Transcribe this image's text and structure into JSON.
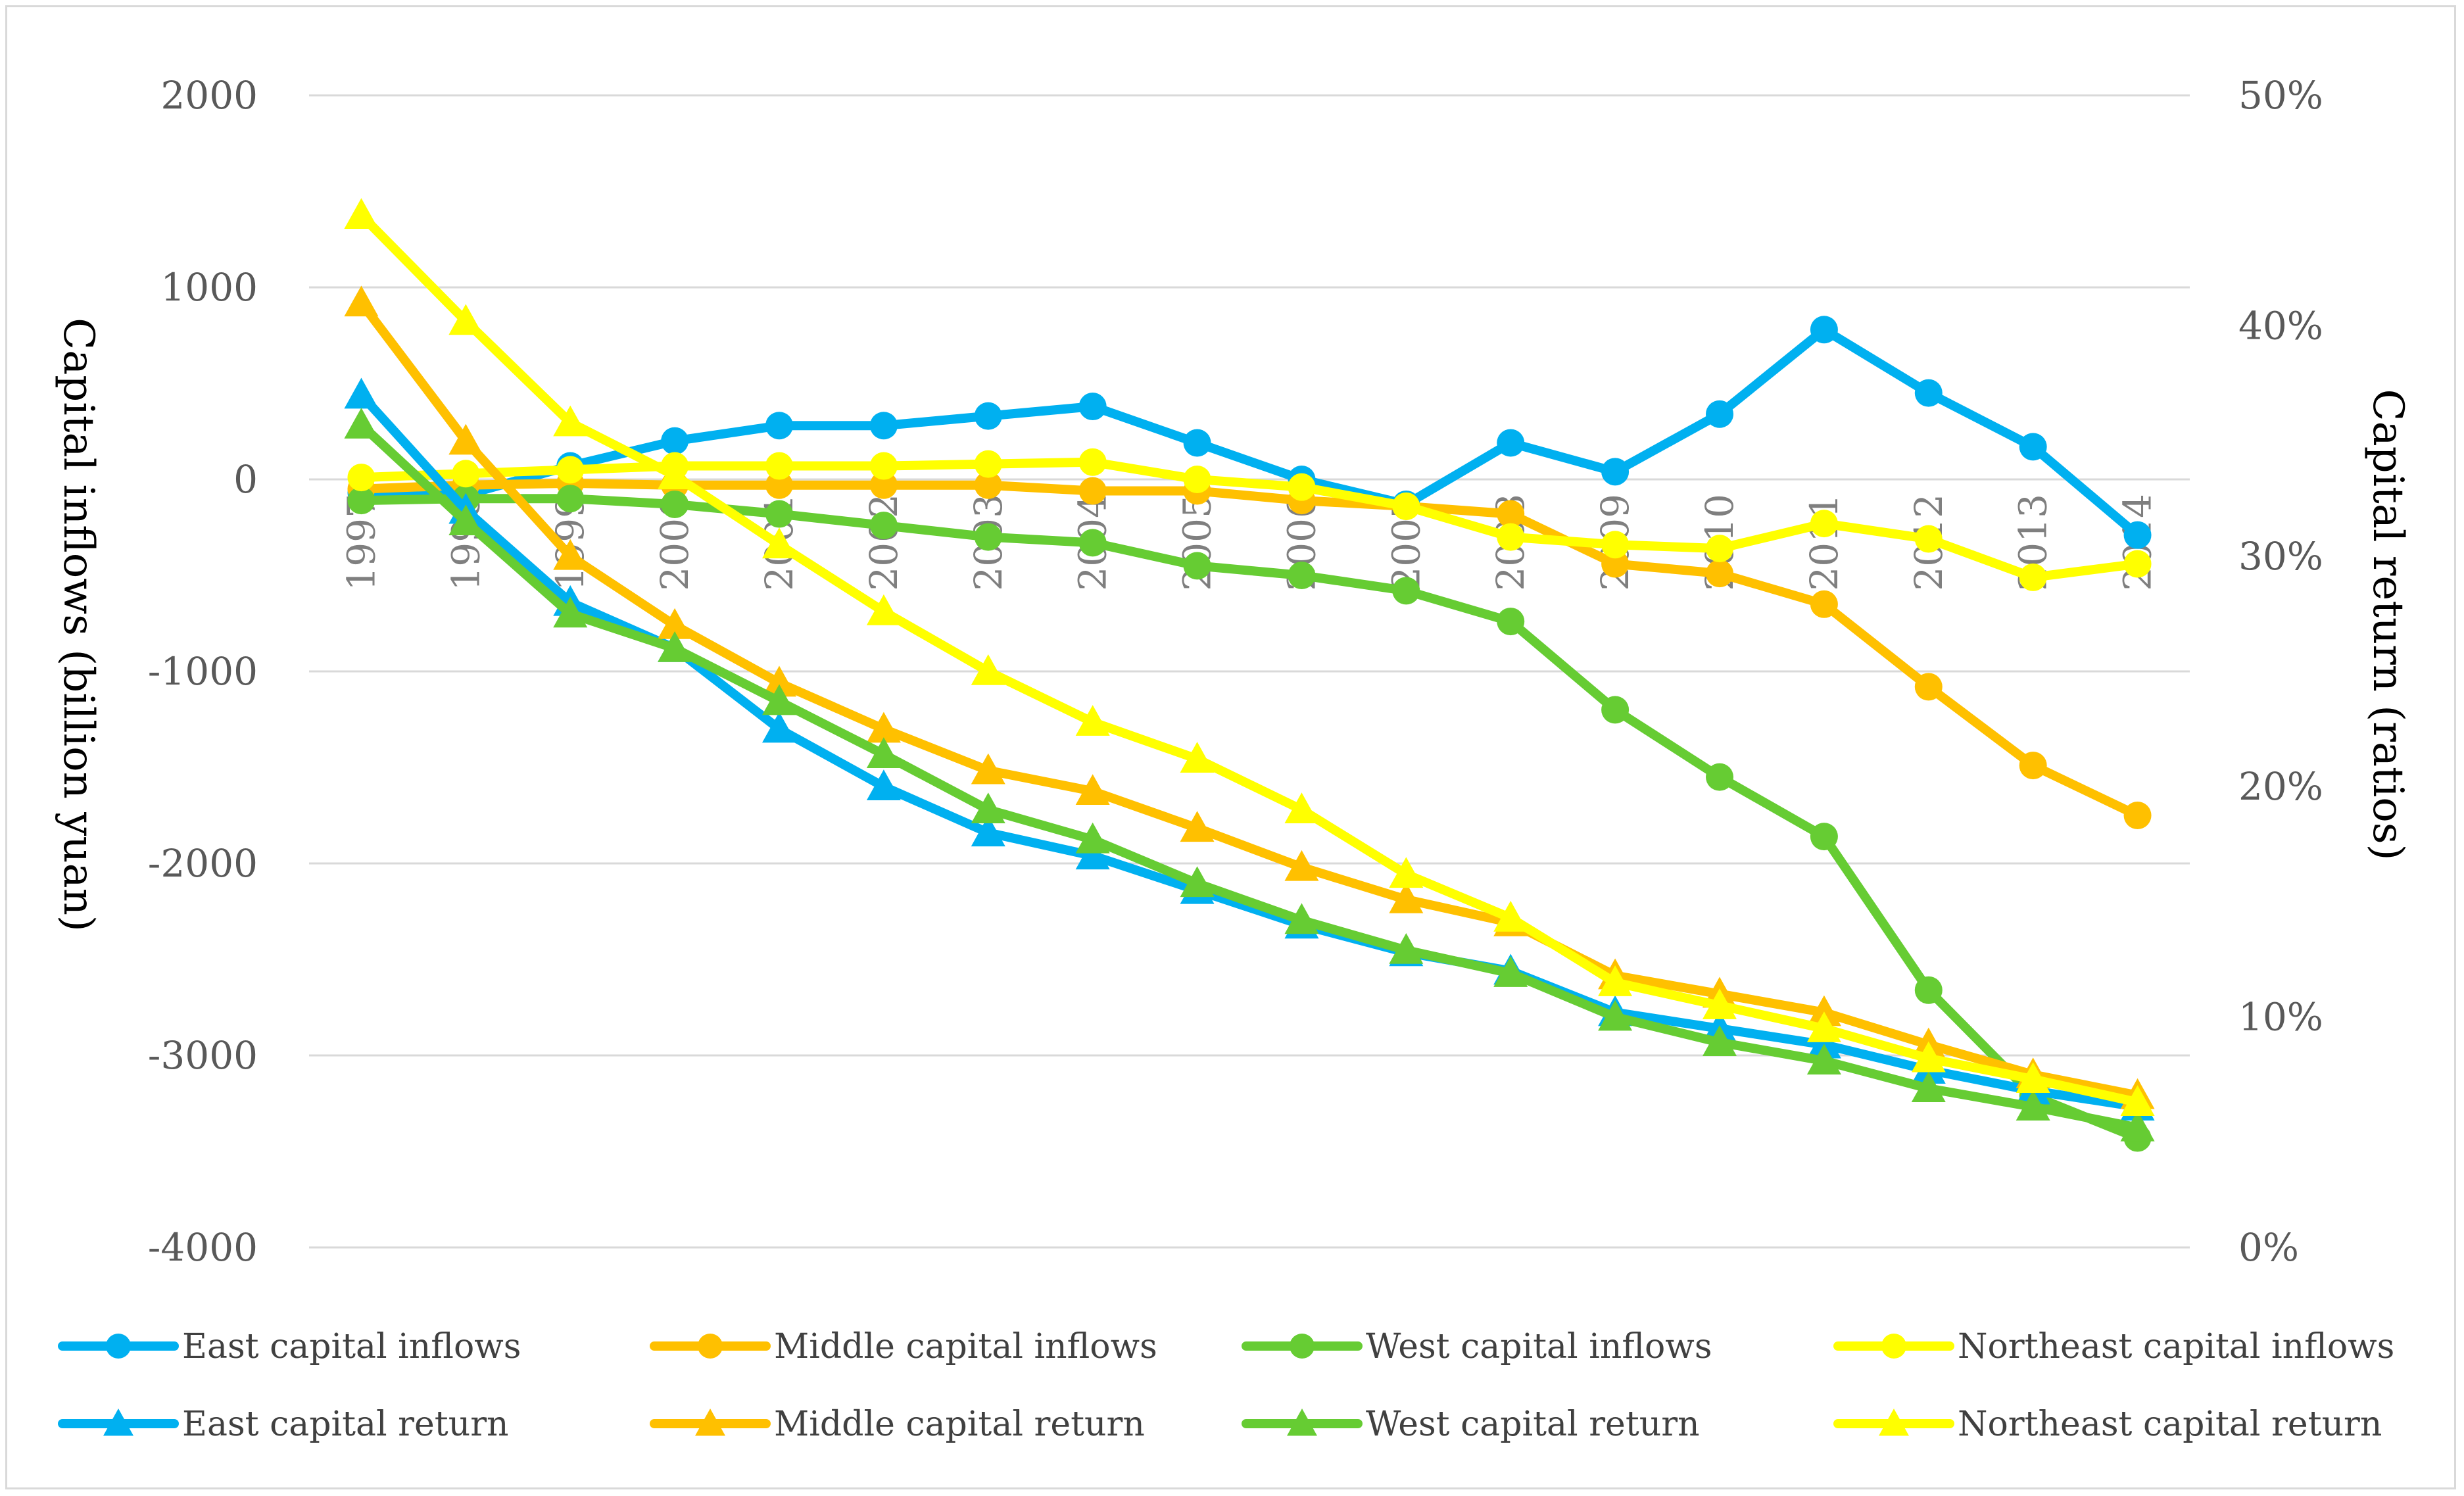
{
  "chart_data": {
    "type": "line",
    "title": "",
    "x": [
      "1997",
      "1998",
      "1999",
      "2000",
      "2001",
      "2002",
      "2003",
      "2004",
      "2005",
      "2006",
      "2007",
      "2008",
      "2009",
      "2010",
      "2011",
      "2012",
      "2013",
      "2014"
    ],
    "left_axis": {
      "label": "Capital inflows (billion yuan)",
      "ylim": [
        -4000,
        2000
      ],
      "ticks": [
        -4000,
        -3000,
        -2000,
        -1000,
        0,
        1000,
        2000
      ],
      "tick_labels": [
        "-4000",
        "-3000",
        "-2000",
        "-1000",
        "0",
        "1000",
        "2000"
      ]
    },
    "right_axis": {
      "label": "Capital return (ratios)",
      "ylim": [
        0,
        0.5
      ],
      "ticks": [
        0,
        0.1,
        0.2,
        0.3,
        0.4,
        0.5
      ],
      "tick_labels": [
        "0%",
        "10%",
        "20%",
        "30%",
        "40%",
        "50%"
      ]
    },
    "grid": true,
    "legend_position": "bottom",
    "series": [
      {
        "name": "East capital inflows",
        "axis": "left",
        "marker": "circle",
        "color": "#00B0F0",
        "values": [
          -70,
          -80,
          70,
          200,
          280,
          280,
          330,
          380,
          190,
          0,
          -130,
          190,
          40,
          340,
          780,
          450,
          170,
          -290
        ]
      },
      {
        "name": "Middle capital inflows",
        "axis": "left",
        "marker": "circle",
        "color": "#FFC000",
        "values": [
          -50,
          -30,
          -20,
          -30,
          -30,
          -30,
          -30,
          -60,
          -60,
          -110,
          -140,
          -180,
          -440,
          -490,
          -650,
          -1080,
          -1490,
          -1750
        ]
      },
      {
        "name": "West capital inflows",
        "axis": "left",
        "marker": "circle",
        "color": "#66CC33",
        "values": [
          -110,
          -100,
          -100,
          -130,
          -180,
          -240,
          -300,
          -330,
          -450,
          -500,
          -580,
          -740,
          -1200,
          -1550,
          -1860,
          -2660,
          -3210,
          -3430
        ]
      },
      {
        "name": "Northeast capital inflows",
        "axis": "left",
        "marker": "circle",
        "color": "#FFFF00",
        "values": [
          10,
          30,
          50,
          70,
          70,
          70,
          80,
          90,
          0,
          -40,
          -140,
          -300,
          -340,
          -360,
          -230,
          -310,
          -510,
          -440
        ]
      },
      {
        "name": "East capital return",
        "axis": "right",
        "marker": "triangle",
        "color": "#00B0F0",
        "values": [
          0.37,
          0.32,
          0.28,
          0.26,
          0.225,
          0.2,
          0.18,
          0.17,
          0.155,
          0.14,
          0.128,
          0.12,
          0.102,
          0.095,
          0.088,
          0.077,
          0.068,
          0.061
        ]
      },
      {
        "name": "Middle capital return",
        "axis": "right",
        "marker": "triangle",
        "color": "#FFC000",
        "values": [
          0.41,
          0.35,
          0.3,
          0.27,
          0.245,
          0.225,
          0.207,
          0.198,
          0.182,
          0.165,
          0.151,
          0.141,
          0.118,
          0.11,
          0.102,
          0.088,
          0.075,
          0.066
        ]
      },
      {
        "name": "West capital return",
        "axis": "right",
        "marker": "triangle",
        "color": "#66CC33",
        "values": [
          0.357,
          0.315,
          0.275,
          0.26,
          0.237,
          0.214,
          0.19,
          0.177,
          0.158,
          0.142,
          0.129,
          0.119,
          0.1,
          0.089,
          0.081,
          0.069,
          0.061,
          0.052
        ]
      },
      {
        "name": "Northeast capital return",
        "axis": "right",
        "marker": "triangle",
        "color": "#FFFF00",
        "values": [
          0.448,
          0.402,
          0.358,
          0.335,
          0.305,
          0.276,
          0.25,
          0.228,
          0.212,
          0.19,
          0.162,
          0.143,
          0.115,
          0.105,
          0.095,
          0.082,
          0.073,
          0.063
        ]
      }
    ]
  }
}
